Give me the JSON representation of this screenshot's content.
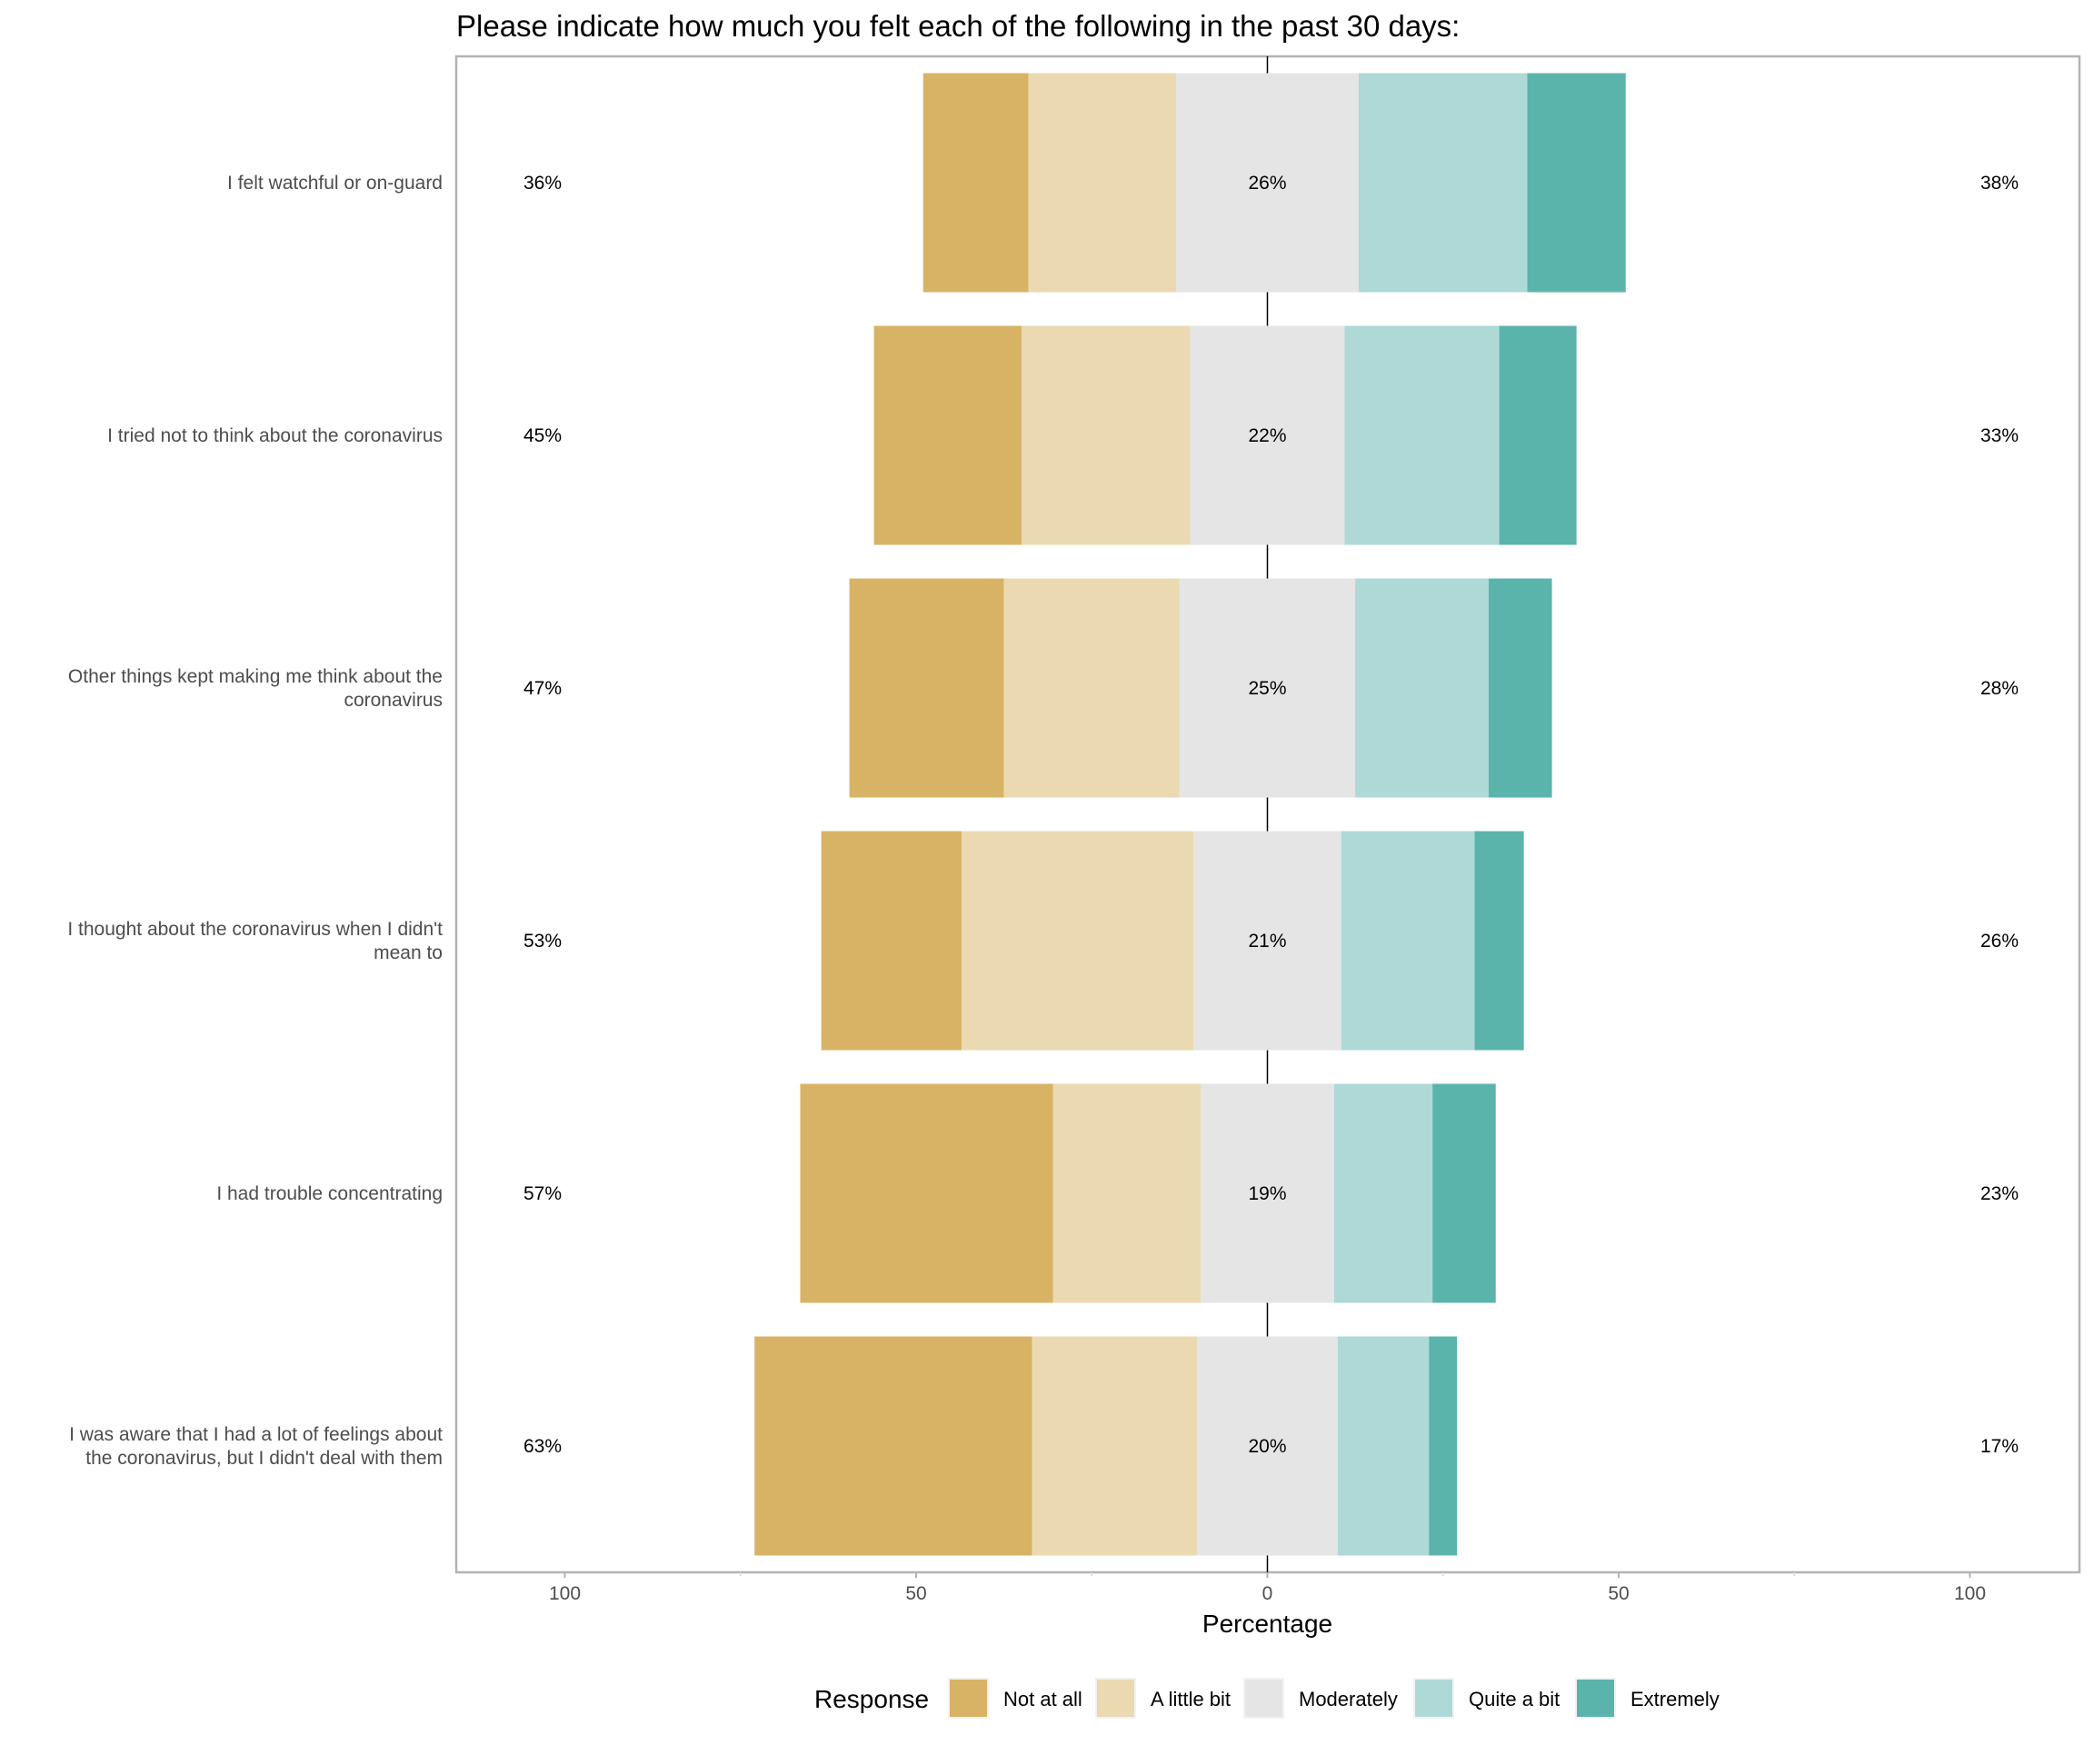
{
  "chart_data": {
    "type": "bar",
    "subtype": "diverging-stacked-horizontal",
    "title": "Please indicate how much you felt each of the following in the past 30 days:",
    "xlabel": "Percentage",
    "ylabel": "",
    "xlim": [
      -115,
      115
    ],
    "xticks": [
      -100,
      -50,
      0,
      50,
      100
    ],
    "xtick_labels": [
      "100",
      "50",
      "0",
      "50",
      "100"
    ],
    "grid": true,
    "legend": {
      "title": "Response",
      "position": "bottom",
      "entries": [
        "Not at all",
        "A little bit",
        "Moderately",
        "Quite a bit",
        "Extremely"
      ]
    },
    "colors": {
      "Not at all": "#d8b365",
      "A little bit": "#ebd9b2",
      "Moderately": "#e5e5e5",
      "Quite a bit": "#aed9d6",
      "Extremely": "#5ab4ac"
    },
    "categories": [
      "I felt watchful or on-guard",
      "I tried not to think about the coronavirus",
      "Other things kept making me think about the coronavirus",
      "I thought about the coronavirus when I didn't mean to",
      "I had trouble concentrating",
      "I was aware that I had a lot of feelings about the coronavirus, but I didn't deal with them"
    ],
    "category_lines": [
      [
        "I felt watchful or on-guard"
      ],
      [
        "I tried not to think about the coronavirus"
      ],
      [
        "Other things kept making me think about the",
        "coronavirus"
      ],
      [
        "I thought about the coronavirus when I didn't",
        "mean to"
      ],
      [
        "I had trouble concentrating"
      ],
      [
        "I was aware that I had a lot of feelings about",
        "the coronavirus, but I didn't deal with them"
      ]
    ],
    "series": [
      {
        "name": "Not at all",
        "values": [
          15,
          21,
          22,
          20,
          36,
          39.5
        ]
      },
      {
        "name": "A little bit",
        "values": [
          21,
          24,
          25,
          33,
          21,
          23.5
        ]
      },
      {
        "name": "Moderately",
        "values": [
          26,
          22,
          25,
          21,
          19,
          20
        ]
      },
      {
        "name": "Quite a bit",
        "values": [
          24,
          22,
          19,
          19,
          14,
          13
        ]
      },
      {
        "name": "Extremely",
        "values": [
          14,
          11,
          9,
          7,
          9,
          4
        ]
      }
    ],
    "labels_low": [
      "36%",
      "45%",
      "47%",
      "53%",
      "57%",
      "63%"
    ],
    "labels_neutral": [
      "26%",
      "22%",
      "25%",
      "21%",
      "19%",
      "20%"
    ],
    "labels_high": [
      "38%",
      "33%",
      "28%",
      "26%",
      "23%",
      "17%"
    ]
  }
}
